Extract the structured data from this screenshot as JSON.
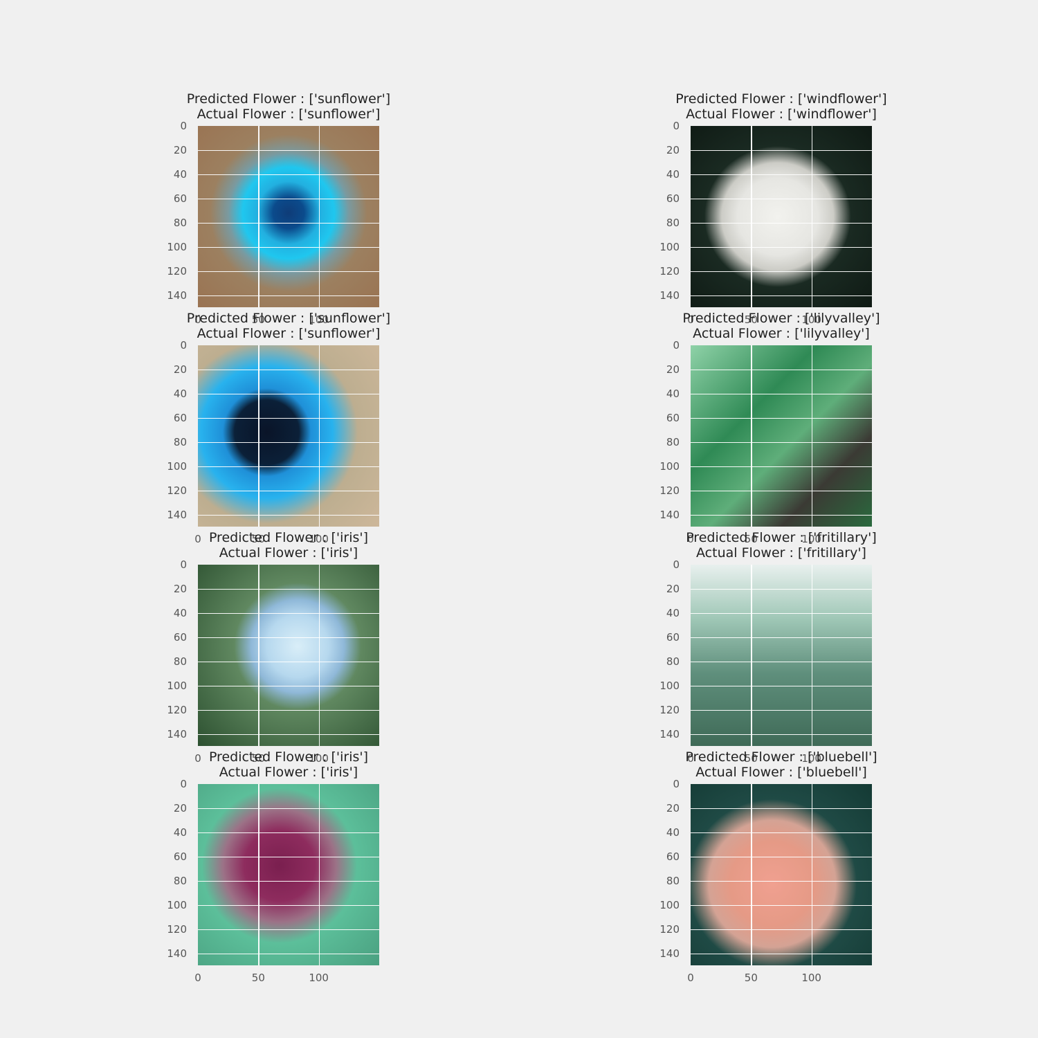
{
  "panels": [
    {
      "predicted": "Predicted Flower : ['sunflower']",
      "actual": "Actual Flower : ['sunflower']",
      "image": "blue-sunflower-photo"
    },
    {
      "predicted": "Predicted Flower : ['windflower']",
      "actual": "Actual Flower : ['windflower']",
      "image": "white-windflower-photo"
    },
    {
      "predicted": "Predicted Flower : ['sunflower']",
      "actual": "Actual Flower : ['sunflower']",
      "image": "blue-sunflower-closeup-photo"
    },
    {
      "predicted": "Predicted Flower : ['lilyvalley']",
      "actual": "Actual Flower : ['lilyvalley']",
      "image": "lily-of-the-valley-photo"
    },
    {
      "predicted": "Predicted Flower : ['iris']",
      "actual": "Actual Flower : ['iris']",
      "image": "pale-blue-iris-photo"
    },
    {
      "predicted": "Predicted Flower : ['fritillary']",
      "actual": "Actual Flower : ['fritillary']",
      "image": "purple-fritillary-photo"
    },
    {
      "predicted": "Predicted Flower : ['iris']",
      "actual": "Actual Flower : ['iris']",
      "image": "magenta-iris-photo"
    },
    {
      "predicted": "Predicted Flower : ['bluebell']",
      "actual": "Actual Flower : ['bluebell']",
      "image": "pink-bluebell-photo"
    }
  ],
  "axes": {
    "y_ticks": [
      "0",
      "20",
      "40",
      "60",
      "80",
      "100",
      "120",
      "140"
    ],
    "x_ticks": [
      "0",
      "50",
      "100"
    ]
  }
}
